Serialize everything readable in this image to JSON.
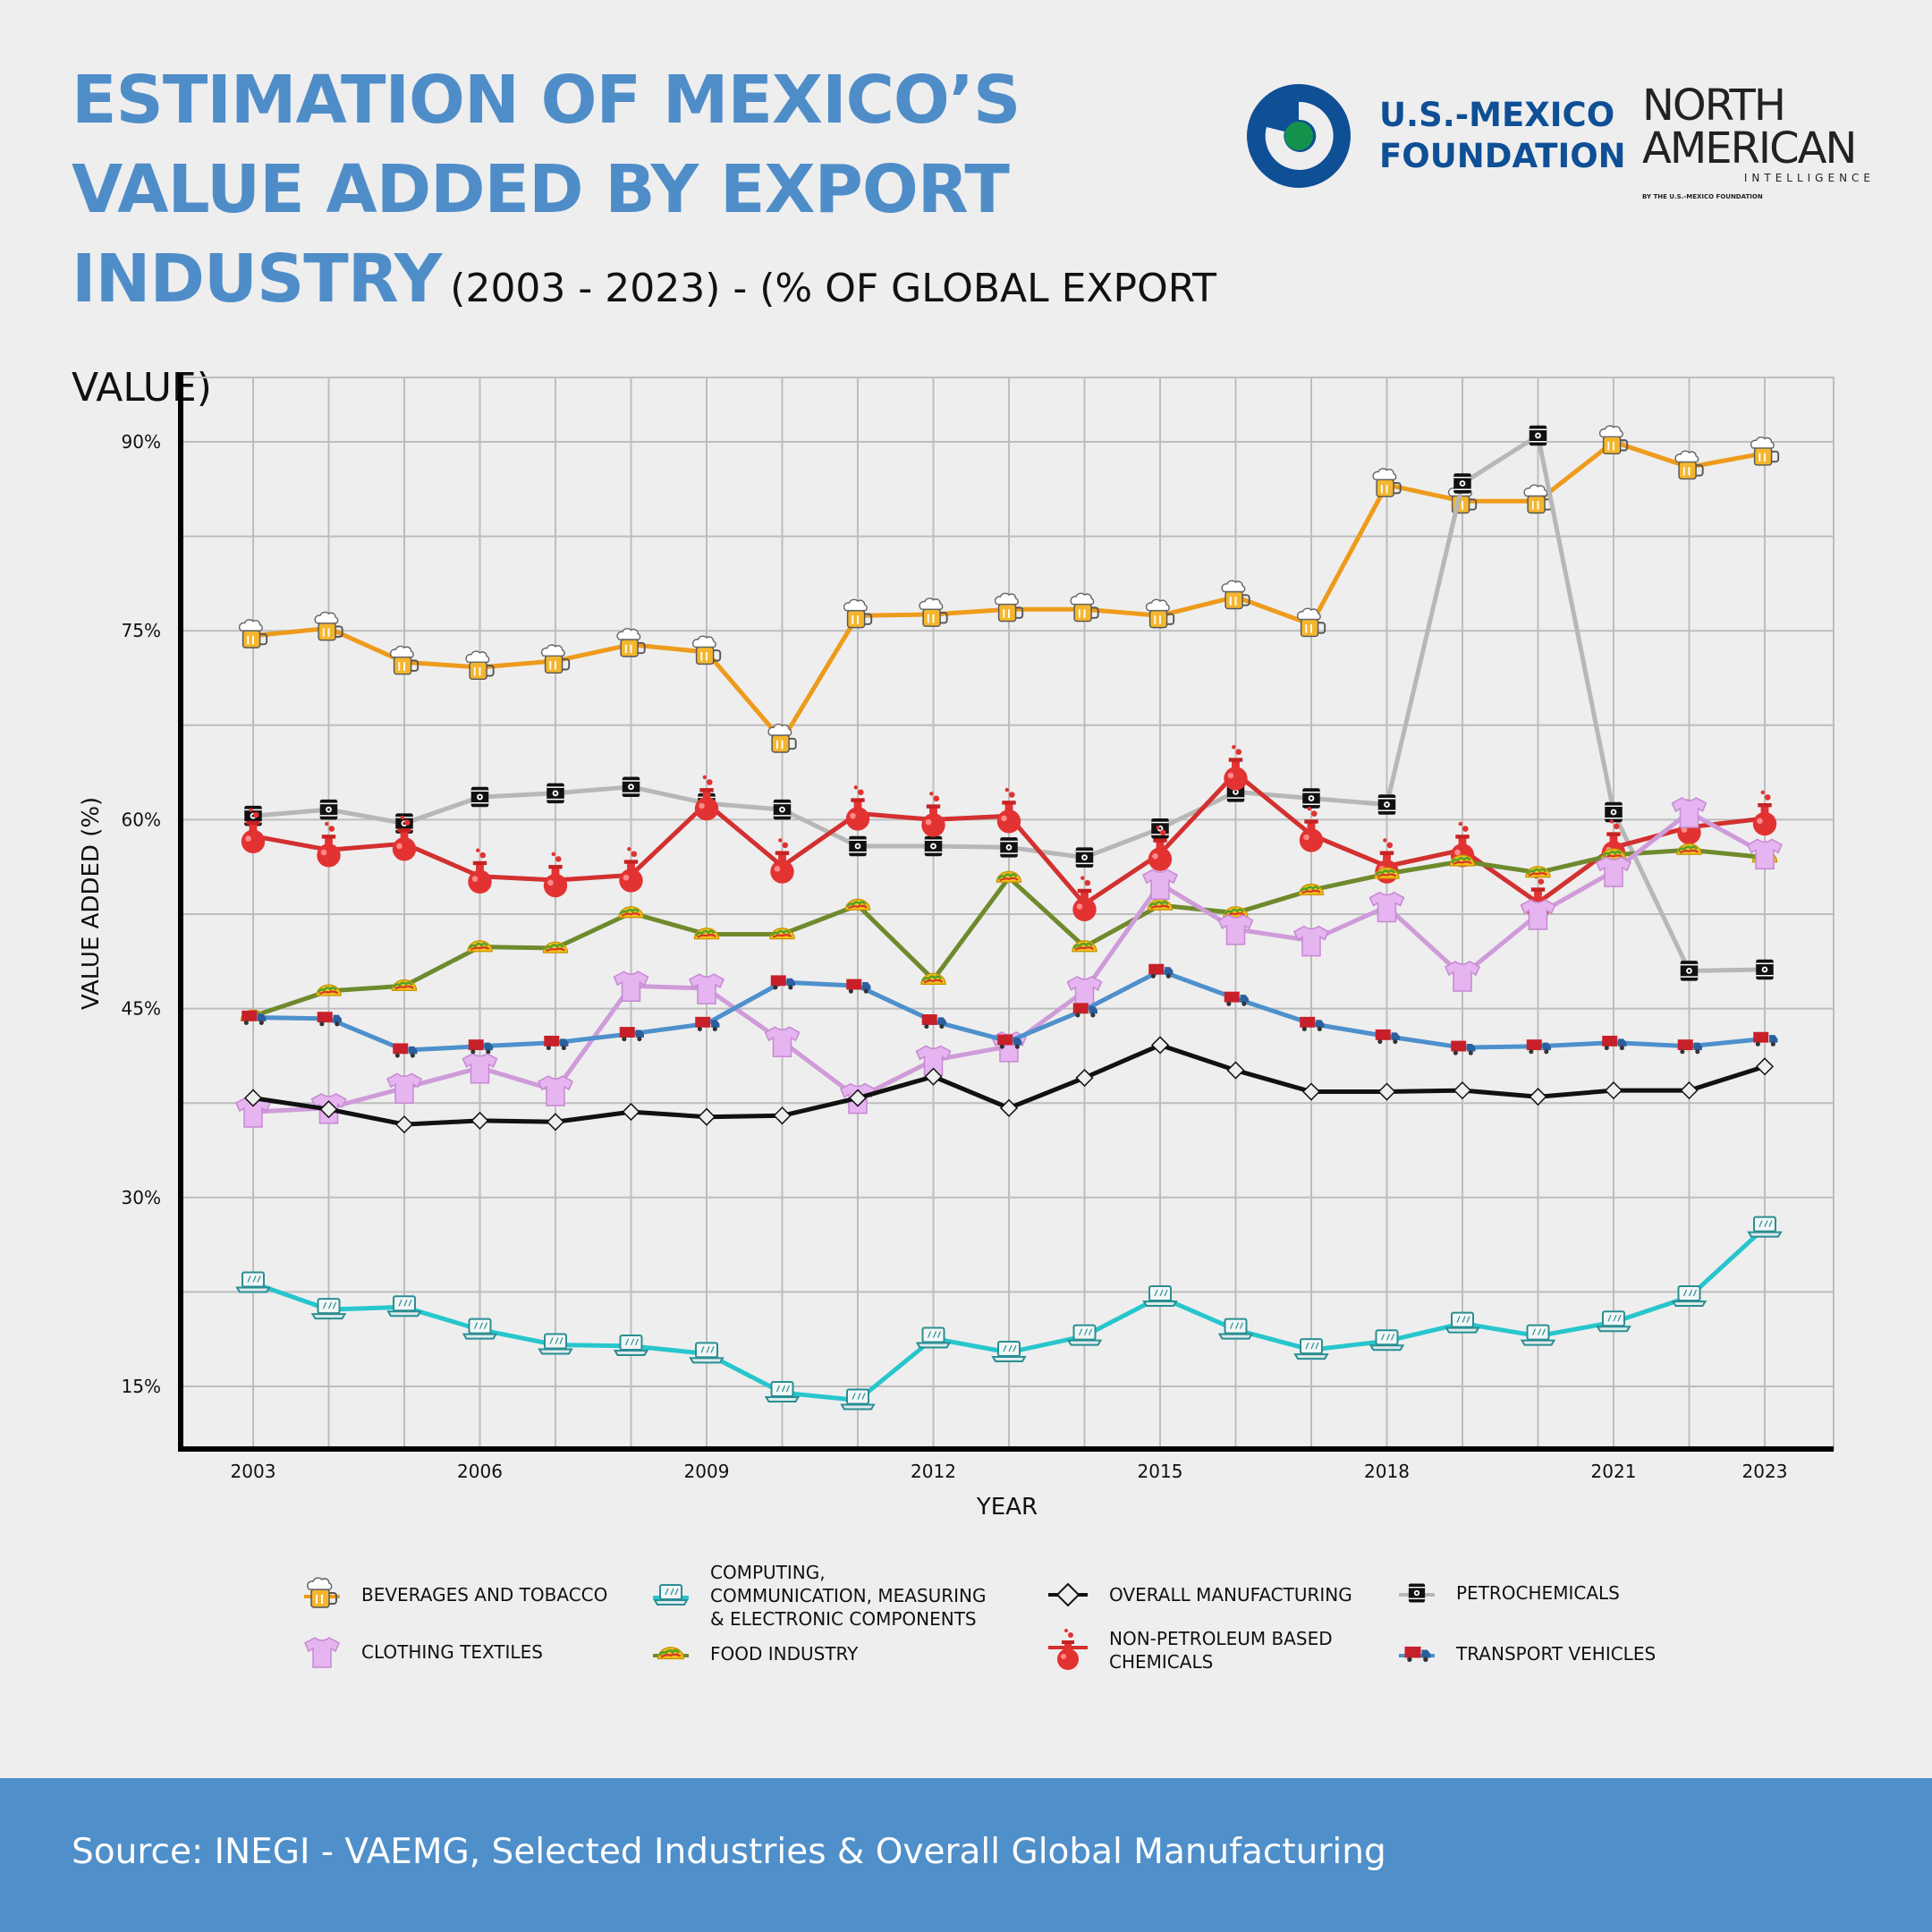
{
  "title": {
    "line1": "ESTIMATION OF MEXICO’S",
    "line2": "VALUE ADDED BY EXPORT",
    "line3": "INDUSTRY",
    "subtitle": "(2003 - 2023) - (% OF GLOBAL EXPORT VALUE)"
  },
  "logos": {
    "usmf_line1": "U.S.-MEXICO",
    "usmf_line2": "FOUNDATION",
    "nai_line1": "NORTH",
    "nai_line2": "AMERICAN",
    "nai_line3": "INTELLIGENCE",
    "nai_byline": "BY THE U.S.-MEXICO FOUNDATION"
  },
  "footer": {
    "source": "Source: INEGI - VAEMG, Selected Industries & Overall Global Manufacturing"
  },
  "legend": {
    "beverages": "BEVERAGES AND TOBACCO",
    "computing": [
      "COMPUTING,",
      "COMMUNICATION, MEASURING",
      "& ELECTRONIC COMPONENTS"
    ],
    "overall": "OVERALL MANUFACTURING",
    "petro": "PETROCHEMICALS",
    "clothing": "CLOTHING TEXTILES",
    "food": "FOOD INDUSTRY",
    "chemicals": [
      "NON-PETROLEUM BASED",
      "CHEMICALS"
    ],
    "transport": "TRANSPORT VEHICLES"
  },
  "chart_data": {
    "type": "line",
    "title": "ESTIMATION OF MEXICO’S VALUE ADDED BY EXPORT INDUSTRY (2003 - 2023) - (% OF GLOBAL EXPORT VALUE)",
    "xlabel": "YEAR",
    "ylabel": "VALUE ADDED (%)",
    "x": [
      2003,
      2004,
      2005,
      2006,
      2007,
      2008,
      2009,
      2010,
      2011,
      2012,
      2013,
      2014,
      2015,
      2016,
      2017,
      2018,
      2019,
      2020,
      2021,
      2022,
      2023
    ],
    "x_ticks": [
      "2003",
      "2006",
      "2009",
      "2012",
      "2015",
      "2018",
      "2021",
      "2023"
    ],
    "y_ticks": [
      "15%",
      "30%",
      "45%",
      "60%",
      "75%",
      "90%"
    ],
    "ylim": [
      10,
      95
    ],
    "grid": true,
    "series": [
      {
        "key": "beverages",
        "name": "BEVERAGES AND TOBACCO",
        "color": "#ee9b1c",
        "marker": "beer",
        "values": [
          74.6,
          75.2,
          72.5,
          72.1,
          72.6,
          73.9,
          73.3,
          66.3,
          76.2,
          76.3,
          76.7,
          76.7,
          76.2,
          77.7,
          75.5,
          86.6,
          85.3,
          85.3,
          90.0,
          88.0,
          89.1
        ]
      },
      {
        "key": "petro",
        "name": "PETROCHEMICALS",
        "color": "#b7b7b7",
        "marker": "barrel",
        "values": [
          60.3,
          60.8,
          59.7,
          61.8,
          62.1,
          62.6,
          61.3,
          60.8,
          57.9,
          57.9,
          57.8,
          57.0,
          59.3,
          62.2,
          61.7,
          61.2,
          86.7,
          90.5,
          60.6,
          48.0,
          48.1
        ]
      },
      {
        "key": "chemicals",
        "name": "NON-PETROLEUM BASED CHEMICALS",
        "color": "#d33030",
        "marker": "flask",
        "values": [
          58.7,
          57.6,
          58.1,
          55.5,
          55.2,
          55.6,
          61.3,
          56.3,
          60.5,
          60.0,
          60.3,
          53.3,
          57.3,
          63.7,
          58.8,
          56.3,
          57.6,
          53.4,
          57.8,
          59.4,
          60.1
        ]
      },
      {
        "key": "food",
        "name": "FOOD INDUSTRY",
        "color": "#6f8a2d",
        "marker": "taco",
        "values": [
          44.4,
          46.4,
          46.8,
          49.9,
          49.8,
          52.6,
          50.9,
          50.9,
          53.2,
          47.3,
          55.4,
          49.9,
          53.2,
          52.6,
          54.4,
          55.7,
          56.7,
          55.8,
          57.2,
          57.6,
          57.0
        ]
      },
      {
        "key": "clothing",
        "name": "CLOTHING TEXTILES",
        "color": "#cf9bd9",
        "marker": "shirt",
        "values": [
          36.8,
          37.1,
          38.7,
          40.3,
          38.5,
          46.8,
          46.6,
          42.4,
          37.9,
          40.9,
          42.0,
          46.4,
          54.9,
          51.3,
          50.4,
          53.1,
          47.6,
          52.5,
          55.9,
          60.6,
          57.3
        ]
      },
      {
        "key": "transport",
        "name": "TRANSPORT VEHICLES",
        "color": "#4d90cc",
        "marker": "truck",
        "values": [
          44.3,
          44.2,
          41.7,
          42.0,
          42.3,
          43.0,
          43.8,
          47.1,
          46.8,
          44.0,
          42.4,
          44.9,
          48.0,
          45.8,
          43.8,
          42.8,
          41.9,
          42.0,
          42.3,
          42.0,
          42.6
        ]
      },
      {
        "key": "overall",
        "name": "OVERALL MANUFACTURING",
        "color": "#111111",
        "marker": "diamond",
        "values": [
          37.9,
          37.0,
          35.8,
          36.1,
          36.0,
          36.8,
          36.4,
          36.5,
          37.9,
          39.6,
          37.1,
          39.5,
          42.1,
          40.1,
          38.4,
          38.4,
          38.5,
          38.0,
          38.5,
          38.5,
          40.4
        ]
      },
      {
        "key": "computing",
        "name": "COMPUTING, COMMUNICATION, MEASURING & ELECTRONIC COMPONENTS",
        "color": "#27c6cd",
        "marker": "laptop",
        "values": [
          23.2,
          21.1,
          21.3,
          19.5,
          18.3,
          18.2,
          17.6,
          14.5,
          13.9,
          18.8,
          17.7,
          19.0,
          22.1,
          19.5,
          17.9,
          18.6,
          20.0,
          19.0,
          20.1,
          22.1,
          27.6
        ]
      }
    ]
  }
}
